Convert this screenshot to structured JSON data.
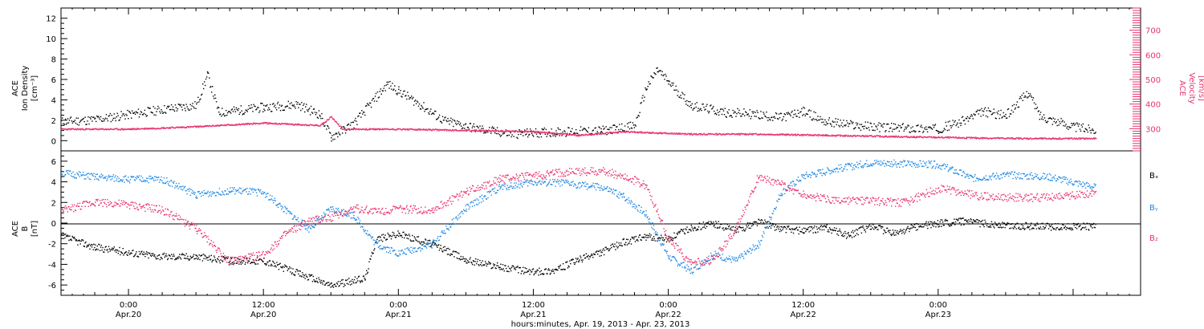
{
  "colors": {
    "black": "#000000",
    "pink": "#e8336b",
    "blue": "#1e88e5"
  },
  "chart_data": [
    {
      "type": "scatter",
      "panel": "top",
      "ylabel_lines": [
        "ACE",
        "Ion Density",
        "[cm⁻³]"
      ],
      "ylim": [
        -1,
        13
      ],
      "yticks": [
        "0",
        "2",
        "4",
        "6",
        "8",
        "10",
        "12"
      ],
      "y2label_lines": [
        "ACE",
        "Velocity",
        "[km/s]"
      ],
      "y2lim": [
        210,
        790
      ],
      "y2ticks": [
        "300",
        "400",
        "500",
        "600",
        "700"
      ],
      "xlim_hours": [
        -6,
        90
      ],
      "series": [
        {
          "axis": "left",
          "color": "black",
          "points": [
            [
              -6,
              1.9
            ],
            [
              -3,
              2.1
            ],
            [
              0,
              2.6
            ],
            [
              3,
              3.1
            ],
            [
              6,
              3.5
            ],
            [
              7,
              6.5
            ],
            [
              8,
              2.8
            ],
            [
              12,
              3.3
            ],
            [
              15,
              3.6
            ],
            [
              17,
              2.6
            ],
            [
              18,
              0.4
            ],
            [
              20,
              1.7
            ],
            [
              23,
              5.6
            ],
            [
              24,
              4.9
            ],
            [
              26,
              3.5
            ],
            [
              28,
              2.0
            ],
            [
              31,
              1.2
            ],
            [
              34,
              0.7
            ],
            [
              38,
              0.9
            ],
            [
              42,
              1.0
            ],
            [
              45,
              1.5
            ],
            [
              46,
              5.2
            ],
            [
              47,
              7.0
            ],
            [
              48,
              5.8
            ],
            [
              50,
              3.5
            ],
            [
              53,
              2.8
            ],
            [
              55,
              2.7
            ],
            [
              58,
              2.3
            ],
            [
              60,
              2.9
            ],
            [
              62,
              1.9
            ],
            [
              65,
              1.5
            ],
            [
              68,
              1.3
            ],
            [
              72,
              1.2
            ],
            [
              74,
              1.9
            ],
            [
              76,
              2.9
            ],
            [
              78,
              2.5
            ],
            [
              80,
              4.8
            ],
            [
              81,
              2.5
            ],
            [
              84,
              1.4
            ],
            [
              86,
              1.1
            ]
          ]
        },
        {
          "axis": "right",
          "color": "pink",
          "points": [
            [
              -6,
              300
            ],
            [
              0,
              300
            ],
            [
              6,
              310
            ],
            [
              12,
              325
            ],
            [
              17,
              315
            ],
            [
              18,
              350
            ],
            [
              19,
              300
            ],
            [
              24,
              300
            ],
            [
              30,
              295
            ],
            [
              36,
              290
            ],
            [
              40,
              275
            ],
            [
              44,
              290
            ],
            [
              50,
              280
            ],
            [
              56,
              280
            ],
            [
              62,
              275
            ],
            [
              68,
              270
            ],
            [
              74,
              265
            ],
            [
              80,
              262
            ],
            [
              86,
              262
            ]
          ]
        }
      ]
    },
    {
      "type": "scatter",
      "panel": "bottom",
      "ylabel_lines": [
        "ACE",
        "B",
        "[nT]"
      ],
      "ylim": [
        -7,
        7
      ],
      "yticks": [
        "-6",
        "-4",
        "-2",
        "0",
        "2",
        "4",
        "6"
      ],
      "xlim_hours": [
        -6,
        90
      ],
      "xticks": [
        {
          "h": 0,
          "t1": "0:00",
          "t2": "Apr.20"
        },
        {
          "h": 12,
          "t1": "12:00",
          "t2": "Apr.20"
        },
        {
          "h": 24,
          "t1": "0:00",
          "t2": "Apr.21"
        },
        {
          "h": 36,
          "t1": "12:00",
          "t2": "Apr.21"
        },
        {
          "h": 48,
          "t1": "0:00",
          "t2": "Apr.22"
        },
        {
          "h": 60,
          "t1": "12:00",
          "t2": "Apr.22"
        },
        {
          "h": 72,
          "t1": "0:00",
          "t2": "Apr.23"
        }
      ],
      "xlabel": "hours:minutes, Apr. 19, 2013 - Apr. 23, 2013",
      "legend": [
        "Bₓ",
        "Bᵧ",
        "B₂"
      ],
      "series": [
        {
          "name": "Bₓ",
          "color": "black",
          "points": [
            [
              -6,
              -1.2
            ],
            [
              -3,
              -2.3
            ],
            [
              0,
              -2.8
            ],
            [
              3,
              -3.2
            ],
            [
              6,
              -3.2
            ],
            [
              9,
              -3.6
            ],
            [
              12,
              -3.6
            ],
            [
              15,
              -4.8
            ],
            [
              18,
              -6.0
            ],
            [
              21,
              -5.3
            ],
            [
              22,
              -1.5
            ],
            [
              24,
              -1.0
            ],
            [
              27,
              -2.0
            ],
            [
              30,
              -3.5
            ],
            [
              33,
              -4.2
            ],
            [
              36,
              -4.7
            ],
            [
              38,
              -4.5
            ],
            [
              40,
              -3.5
            ],
            [
              42,
              -2.8
            ],
            [
              44,
              -1.8
            ],
            [
              46,
              -1.3
            ],
            [
              48,
              -1.5
            ],
            [
              50,
              -0.4
            ],
            [
              52,
              0.0
            ],
            [
              54,
              -0.7
            ],
            [
              56,
              0.2
            ],
            [
              58,
              -0.5
            ],
            [
              60,
              -0.7
            ],
            [
              62,
              -0.4
            ],
            [
              64,
              -1.2
            ],
            [
              66,
              -0.2
            ],
            [
              68,
              -1.0
            ],
            [
              70,
              -0.3
            ],
            [
              72,
              0.0
            ],
            [
              74,
              0.2
            ],
            [
              78,
              -0.2
            ],
            [
              82,
              -0.3
            ],
            [
              86,
              -0.3
            ]
          ]
        },
        {
          "name": "Bᵧ",
          "color": "blue",
          "points": [
            [
              -6,
              4.9
            ],
            [
              -3,
              4.5
            ],
            [
              0,
              4.3
            ],
            [
              3,
              4.3
            ],
            [
              6,
              2.8
            ],
            [
              9,
              3.2
            ],
            [
              12,
              3.0
            ],
            [
              14,
              1.2
            ],
            [
              16,
              -0.5
            ],
            [
              18,
              1.4
            ],
            [
              20,
              0.8
            ],
            [
              22,
              -2.0
            ],
            [
              24,
              -2.9
            ],
            [
              27,
              -2.0
            ],
            [
              30,
              1.5
            ],
            [
              33,
              3.5
            ],
            [
              36,
              4.0
            ],
            [
              39,
              3.9
            ],
            [
              42,
              3.5
            ],
            [
              44,
              2.6
            ],
            [
              46,
              0.9
            ],
            [
              48,
              -3.2
            ],
            [
              50,
              -4.6
            ],
            [
              52,
              -3.0
            ],
            [
              54,
              -3.6
            ],
            [
              56,
              -2.0
            ],
            [
              58,
              3.0
            ],
            [
              60,
              4.6
            ],
            [
              63,
              5.3
            ],
            [
              66,
              5.9
            ],
            [
              69,
              5.8
            ],
            [
              72,
              5.7
            ],
            [
              75,
              4.4
            ],
            [
              78,
              4.7
            ],
            [
              82,
              4.5
            ],
            [
              86,
              3.5
            ]
          ]
        },
        {
          "name": "B₂",
          "color": "pink",
          "points": [
            [
              -6,
              1.2
            ],
            [
              -3,
              2.1
            ],
            [
              0,
              1.8
            ],
            [
              3,
              1.3
            ],
            [
              6,
              -0.5
            ],
            [
              9,
              -3.7
            ],
            [
              12,
              -3.0
            ],
            [
              14,
              -1.0
            ],
            [
              16,
              0.2
            ],
            [
              18,
              0.6
            ],
            [
              20,
              1.5
            ],
            [
              22,
              1.2
            ],
            [
              24,
              1.4
            ],
            [
              27,
              1.3
            ],
            [
              30,
              3.1
            ],
            [
              33,
              4.3
            ],
            [
              36,
              4.6
            ],
            [
              39,
              5.0
            ],
            [
              42,
              5.1
            ],
            [
              44,
              4.6
            ],
            [
              46,
              3.7
            ],
            [
              48,
              -1.5
            ],
            [
              50,
              -3.9
            ],
            [
              52,
              -3.5
            ],
            [
              54,
              -0.5
            ],
            [
              56,
              4.6
            ],
            [
              58,
              3.8
            ],
            [
              60,
              2.8
            ],
            [
              63,
              2.2
            ],
            [
              66,
              2.2
            ],
            [
              69,
              2.0
            ],
            [
              72,
              3.4
            ],
            [
              76,
              2.6
            ],
            [
              80,
              2.5
            ],
            [
              84,
              2.7
            ],
            [
              86,
              3.0
            ]
          ]
        }
      ]
    }
  ]
}
